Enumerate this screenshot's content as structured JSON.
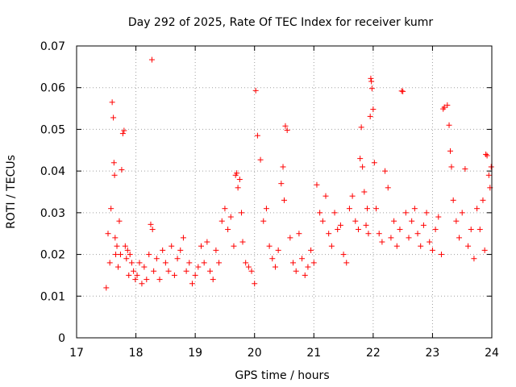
{
  "chart_data": {
    "type": "scatter",
    "title": "Day 292 of 2025, Rate Of TEC Index for receiver kumr",
    "xlabel": "GPS time / hours",
    "ylabel": "ROTI / TECUs",
    "xlim": [
      17,
      24
    ],
    "ylim": [
      0,
      0.07
    ],
    "x_ticks": [
      "17",
      "18",
      "19",
      "20",
      "21",
      "22",
      "23",
      "24"
    ],
    "y_ticks": [
      "0",
      "0.01",
      "0.02",
      "0.03",
      "0.04",
      "0.05",
      "0.06",
      "0.07"
    ],
    "grid": true,
    "marker": "+",
    "marker_color": "#ff0000",
    "series": [
      {
        "x": [
          17.5,
          17.53,
          17.56,
          17.58,
          17.6,
          17.62,
          17.63,
          17.64,
          17.65,
          17.66,
          17.68,
          17.7,
          17.72,
          17.74,
          17.76,
          17.78,
          17.8,
          17.82,
          17.84,
          17.86,
          17.88,
          17.9,
          17.93,
          17.96,
          17.99,
          18.02,
          18.06,
          18.1,
          18.14,
          18.18,
          18.22,
          18.25,
          18.27,
          18.28,
          18.3,
          18.35,
          18.4,
          18.45,
          18.5,
          18.55,
          18.6,
          18.65,
          18.7,
          18.75,
          18.8,
          18.85,
          18.9,
          18.95,
          19.0,
          19.05,
          19.1,
          19.15,
          19.2,
          19.25,
          19.3,
          19.35,
          19.4,
          19.45,
          19.5,
          19.55,
          19.6,
          19.65,
          19.68,
          19.7,
          19.72,
          19.75,
          19.78,
          19.8,
          19.85,
          19.9,
          19.95,
          20.0,
          20.02,
          20.05,
          20.1,
          20.15,
          20.2,
          20.25,
          20.3,
          20.35,
          20.4,
          20.45,
          20.48,
          20.5,
          20.52,
          20.55,
          20.6,
          20.65,
          20.7,
          20.75,
          20.8,
          20.85,
          20.9,
          20.95,
          21.0,
          21.05,
          21.1,
          21.15,
          21.2,
          21.25,
          21.3,
          21.35,
          21.4,
          21.45,
          21.5,
          21.55,
          21.6,
          21.65,
          21.7,
          21.75,
          21.78,
          21.8,
          21.82,
          21.85,
          21.88,
          21.9,
          21.92,
          21.95,
          21.96,
          21.97,
          21.98,
          22.0,
          22.02,
          22.05,
          22.1,
          22.15,
          22.2,
          22.25,
          22.3,
          22.35,
          22.4,
          22.45,
          22.48,
          22.5,
          22.55,
          22.6,
          22.65,
          22.7,
          22.75,
          22.8,
          22.85,
          22.9,
          22.95,
          23.0,
          23.05,
          23.1,
          23.15,
          23.18,
          23.2,
          23.25,
          23.28,
          23.3,
          23.32,
          23.35,
          23.4,
          23.45,
          23.5,
          23.55,
          23.6,
          23.65,
          23.7,
          23.75,
          23.8,
          23.85,
          23.88,
          23.9,
          23.92,
          23.95,
          23.97,
          23.99
        ],
        "y": [
          0.012,
          0.025,
          0.018,
          0.031,
          0.0565,
          0.0528,
          0.042,
          0.039,
          0.024,
          0.02,
          0.022,
          0.017,
          0.028,
          0.02,
          0.0403,
          0.049,
          0.0497,
          0.022,
          0.019,
          0.021,
          0.015,
          0.02,
          0.018,
          0.016,
          0.014,
          0.015,
          0.018,
          0.013,
          0.017,
          0.014,
          0.02,
          0.0272,
          0.0667,
          0.026,
          0.016,
          0.019,
          0.014,
          0.021,
          0.018,
          0.016,
          0.022,
          0.015,
          0.019,
          0.021,
          0.024,
          0.016,
          0.018,
          0.013,
          0.015,
          0.017,
          0.022,
          0.018,
          0.023,
          0.016,
          0.014,
          0.021,
          0.018,
          0.028,
          0.031,
          0.026,
          0.029,
          0.022,
          0.039,
          0.0395,
          0.036,
          0.038,
          0.03,
          0.023,
          0.018,
          0.017,
          0.016,
          0.013,
          0.0593,
          0.0485,
          0.0427,
          0.028,
          0.031,
          0.022,
          0.019,
          0.017,
          0.021,
          0.037,
          0.041,
          0.033,
          0.0508,
          0.0498,
          0.024,
          0.018,
          0.016,
          0.025,
          0.019,
          0.015,
          0.017,
          0.021,
          0.018,
          0.0367,
          0.03,
          0.028,
          0.034,
          0.025,
          0.022,
          0.03,
          0.026,
          0.027,
          0.02,
          0.018,
          0.031,
          0.034,
          0.028,
          0.026,
          0.043,
          0.0505,
          0.041,
          0.035,
          0.027,
          0.031,
          0.025,
          0.0531,
          0.0622,
          0.0615,
          0.0598,
          0.0548,
          0.042,
          0.031,
          0.025,
          0.023,
          0.04,
          0.036,
          0.024,
          0.028,
          0.022,
          0.026,
          0.0592,
          0.0591,
          0.03,
          0.024,
          0.028,
          0.031,
          0.025,
          0.022,
          0.027,
          0.03,
          0.023,
          0.021,
          0.026,
          0.029,
          0.02,
          0.0549,
          0.0553,
          0.0558,
          0.051,
          0.0448,
          0.041,
          0.033,
          0.028,
          0.024,
          0.03,
          0.0405,
          0.022,
          0.026,
          0.019,
          0.031,
          0.026,
          0.033,
          0.021,
          0.044,
          0.0437,
          0.039,
          0.036,
          0.041
        ]
      }
    ]
  }
}
